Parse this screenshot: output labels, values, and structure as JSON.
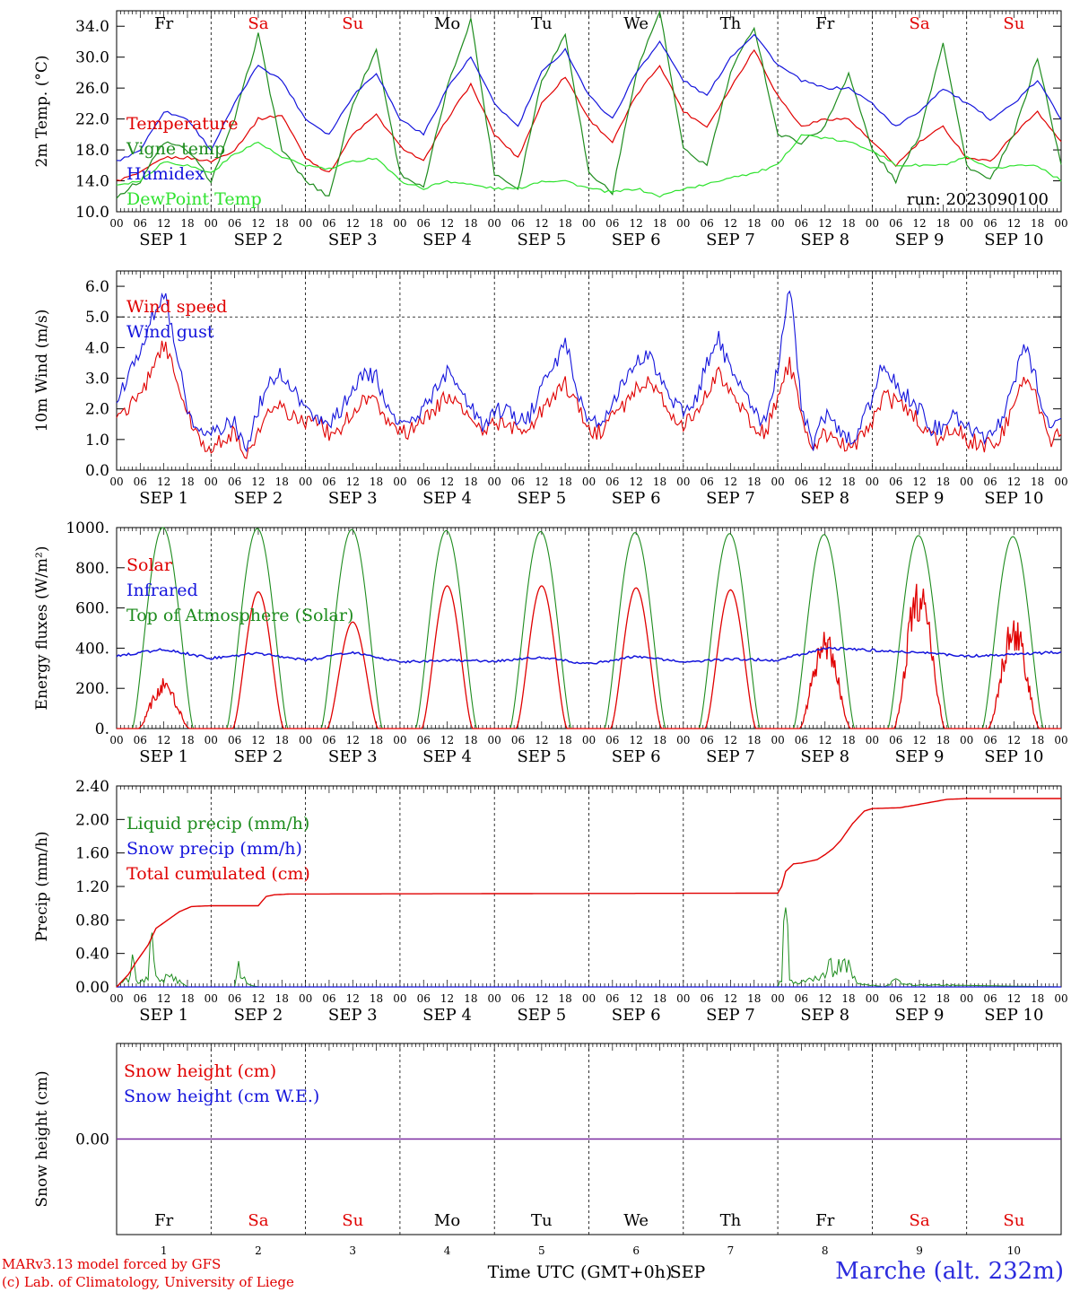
{
  "colors": {
    "red": "#e00000",
    "green": "#1e8c1e",
    "blue": "#1414dc",
    "lightgreen": "#2ee22e",
    "purple": "#7a2aa0",
    "station": "#2b2bdd"
  },
  "days": [
    "1",
    "2",
    "3",
    "4",
    "5",
    "6",
    "7",
    "8",
    "9",
    "10"
  ],
  "day_labels": [
    "SEP  1",
    "SEP  2",
    "SEP  3",
    "SEP  4",
    "SEP  5",
    "SEP  6",
    "SEP  7",
    "SEP  8",
    "SEP  9",
    "SEP 10"
  ],
  "weekdays": [
    "Fr",
    "Sa",
    "Su",
    "Mo",
    "Tu",
    "We",
    "Th",
    "Fr",
    "Sa",
    "Su"
  ],
  "weekday_colors": [
    "black",
    "red",
    "red",
    "black",
    "black",
    "black",
    "black",
    "black",
    "red",
    "red"
  ],
  "hour_ticks": [
    "00",
    "06",
    "12",
    "18"
  ],
  "hour_end": "00",
  "x_axis_label": "Time UTC (GMT+0h)",
  "x_axis_month": "SEP",
  "credit_line1": "MARv3.13 model forced by GFS",
  "credit_line2": "(c) Lab. of Climatology, University of Liege",
  "station": "Marche (alt. 232m)",
  "chart_data": [
    {
      "type": "line",
      "ylabel": "2m Temp. (°C)",
      "ylim": [
        10,
        36
      ],
      "yticks": [
        "10.0",
        "14.0",
        "18.0",
        "22.0",
        "26.0",
        "30.0",
        "34.0"
      ],
      "run_label": "run: 2023090100",
      "x_hours": [
        0,
        6,
        12,
        18,
        24,
        30,
        36,
        42,
        48,
        54,
        60,
        66,
        72,
        78,
        84,
        90,
        96,
        102,
        108,
        114,
        120,
        126,
        132,
        138,
        144,
        150,
        156,
        162,
        168,
        174,
        180,
        186,
        192,
        198,
        204,
        210,
        216,
        222,
        228,
        234,
        240
      ],
      "series": [
        {
          "name": "Temperature",
          "color": "red",
          "values": [
            14,
            15,
            17,
            17,
            16.5,
            18,
            22,
            22.5,
            17,
            15,
            20,
            22.5,
            18.5,
            16.5,
            22,
            26.5,
            20,
            17,
            24,
            27.5,
            22,
            19,
            25,
            29,
            23,
            21,
            26,
            31,
            25,
            21,
            22,
            22,
            19,
            16,
            19,
            21,
            17,
            16.5,
            20,
            23,
            19
          ]
        },
        {
          "name": "Vigne temp",
          "color": "green",
          "values": [
            12,
            14,
            19,
            18,
            14,
            22,
            33,
            18,
            14,
            12,
            24,
            31,
            15,
            13,
            26,
            35,
            15,
            13,
            27,
            33,
            15,
            12.5,
            28,
            36,
            18,
            16,
            28,
            34,
            20,
            19,
            21,
            28,
            18,
            14,
            20,
            32,
            16,
            14,
            20,
            30,
            16
          ]
        },
        {
          "name": "Humidex",
          "color": "blue",
          "values": [
            16.5,
            18,
            23,
            22,
            18,
            24,
            29,
            27,
            22,
            20,
            25,
            28,
            22,
            20,
            26,
            30,
            24,
            21,
            28,
            31,
            25,
            22,
            28,
            32,
            27,
            25,
            30,
            33,
            29,
            27,
            26,
            26,
            24,
            21,
            23,
            26,
            24,
            22,
            24,
            27,
            22
          ]
        },
        {
          "name": "DewPoint Temp",
          "color": "lightgreen",
          "values": [
            13.5,
            14,
            16.5,
            16,
            15,
            17.5,
            19,
            17,
            16,
            15.5,
            16.5,
            17,
            14,
            13,
            14,
            13.5,
            13,
            13,
            14,
            14,
            13,
            12.5,
            13,
            12,
            13,
            13.5,
            14.5,
            15,
            16,
            20,
            19.5,
            19,
            18,
            16,
            16,
            16,
            17,
            15.5,
            16,
            16,
            14
          ]
        }
      ]
    },
    {
      "type": "line",
      "ylabel": "10m Wind (m/s)",
      "ylim": [
        0,
        6.5
      ],
      "yticks": [
        "0.0",
        "1.0",
        "2.0",
        "3.0",
        "4.0",
        "5.0",
        "6.0"
      ],
      "dashed_line": 5.0,
      "x_hours": [
        0,
        3,
        6,
        9,
        12,
        15,
        18,
        21,
        24,
        27,
        30,
        33,
        36,
        39,
        42,
        45,
        48,
        51,
        54,
        57,
        60,
        63,
        66,
        69,
        72,
        75,
        78,
        81,
        84,
        87,
        90,
        93,
        96,
        99,
        102,
        105,
        108,
        111,
        114,
        117,
        120,
        123,
        126,
        129,
        132,
        135,
        138,
        141,
        144,
        147,
        150,
        153,
        156,
        159,
        162,
        165,
        168,
        171,
        174,
        177,
        180,
        183,
        186,
        189,
        192,
        195,
        198,
        201,
        204,
        207,
        210,
        213,
        216,
        219,
        222,
        225,
        228,
        231,
        234,
        237,
        240
      ],
      "series": [
        {
          "name": "Wind speed",
          "color": "red",
          "values": [
            1.7,
            2.0,
            2.5,
            3.2,
            4.1,
            3.2,
            1.8,
            0.9,
            0.8,
            1.0,
            1.2,
            0.4,
            1.4,
            1.9,
            2.0,
            1.7,
            1.6,
            1.5,
            1.2,
            1.4,
            1.9,
            2.4,
            2.3,
            1.6,
            1.2,
            1.3,
            1.6,
            2.0,
            2.4,
            2.2,
            1.6,
            1.3,
            1.5,
            1.5,
            1.3,
            1.4,
            1.9,
            2.5,
            2.8,
            2.1,
            1.2,
            1.3,
            1.8,
            2.1,
            2.6,
            2.9,
            2.4,
            1.9,
            1.5,
            1.7,
            2.5,
            3.1,
            2.6,
            2.0,
            1.3,
            1.2,
            2.4,
            3.5,
            1.8,
            0.6,
            1.2,
            1.0,
            0.8,
            1.0,
            1.6,
            2.4,
            2.2,
            1.9,
            1.6,
            1.0,
            1.1,
            1.5,
            1.0,
            0.9,
            0.8,
            1.2,
            2.2,
            3.1,
            2.2,
            1.0,
            1.2
          ]
        },
        {
          "name": "Wind gust",
          "color": "blue",
          "values": [
            2.2,
            3.0,
            4.0,
            5.0,
            5.8,
            4.0,
            2.1,
            1.2,
            1.1,
            1.4,
            1.6,
            0.5,
            2.0,
            3.0,
            3.1,
            2.7,
            2.0,
            1.8,
            1.4,
            2.0,
            2.5,
            3.2,
            3.0,
            2.0,
            1.5,
            1.6,
            2.0,
            2.6,
            3.2,
            2.8,
            2.0,
            1.5,
            1.9,
            2.0,
            1.5,
            1.8,
            2.8,
            3.3,
            4.2,
            2.6,
            1.5,
            1.6,
            2.3,
            2.8,
            3.5,
            3.7,
            3.1,
            2.3,
            1.9,
            2.2,
            3.5,
            4.3,
            3.2,
            2.8,
            1.8,
            1.6,
            3.4,
            6.1,
            2.1,
            0.8,
            1.8,
            1.3,
            1.0,
            1.3,
            2.4,
            3.6,
            2.8,
            2.4,
            2.0,
            1.4,
            1.4,
            1.9,
            1.3,
            1.2,
            1.1,
            1.7,
            2.9,
            4.1,
            2.8,
            1.3,
            1.5
          ]
        }
      ]
    },
    {
      "type": "line",
      "ylabel": "Energy fluxes (W/m²)",
      "ylim": [
        0,
        1000
      ],
      "yticks": [
        "0.",
        "200.",
        "400.",
        "600.",
        "800.",
        "1000."
      ],
      "series": [
        {
          "name": "Solar",
          "color": "red",
          "daily_peaks": [
            210,
            680,
            530,
            710,
            710,
            700,
            690,
            410,
            660,
            480
          ]
        },
        {
          "name": "Infrared",
          "color": "blue",
          "x_hours": [
            0,
            12,
            24,
            36,
            48,
            60,
            72,
            84,
            96,
            108,
            120,
            132,
            144,
            156,
            168,
            180,
            192,
            204,
            216,
            228,
            240
          ],
          "values": [
            360,
            395,
            350,
            375,
            340,
            380,
            330,
            340,
            335,
            355,
            320,
            360,
            330,
            345,
            340,
            400,
            390,
            380,
            360,
            370,
            380
          ]
        },
        {
          "name": "Top of Atmosphere (Solar)",
          "color": "green",
          "daily_peaks": [
            1000,
            995,
            990,
            985,
            980,
            975,
            970,
            965,
            960,
            955
          ]
        }
      ]
    },
    {
      "type": "line",
      "ylabel": "Precip (mm/h)",
      "ylim": [
        0,
        2.4
      ],
      "yticks": [
        "0.00",
        "0.40",
        "0.80",
        "1.20",
        "1.60",
        "2.00",
        "2.40"
      ],
      "series": [
        {
          "name": "Liquid precip (mm/h)",
          "color": "green",
          "x_hours": [
            0,
            3,
            4,
            5,
            6,
            8,
            9,
            10,
            12,
            15,
            18,
            30,
            31,
            32,
            34,
            36,
            168,
            169,
            170,
            171,
            172,
            174,
            176,
            180,
            181,
            182,
            183,
            184,
            186,
            188,
            195,
            197,
            198,
            200,
            240
          ],
          "values": [
            0,
            0.1,
            0.45,
            0.1,
            0.05,
            0.1,
            0.7,
            0.1,
            0.1,
            0.1,
            0,
            0,
            0.25,
            0.1,
            0.02,
            0,
            0,
            0.1,
            0.95,
            0.1,
            0.05,
            0.05,
            0.1,
            0.15,
            0.4,
            0.2,
            0.3,
            0.2,
            0.25,
            0.05,
            0,
            0.05,
            0.07,
            0.03,
            0
          ]
        },
        {
          "name": "Snow precip (mm/h)",
          "color": "blue",
          "x_hours": [
            0,
            240
          ],
          "values": [
            0,
            0
          ]
        },
        {
          "name": "Total cumulated (cm)",
          "color": "red",
          "x_hours": [
            0,
            3,
            5,
            8,
            10,
            13,
            16,
            19,
            24,
            36,
            38,
            40,
            44,
            48,
            168,
            169,
            170,
            172,
            174,
            178,
            180,
            182,
            184,
            187,
            190,
            192,
            199,
            204,
            211,
            216,
            240
          ],
          "values": [
            0,
            0.15,
            0.3,
            0.5,
            0.7,
            0.8,
            0.9,
            0.96,
            0.97,
            0.97,
            1.08,
            1.1,
            1.11,
            1.11,
            1.12,
            1.2,
            1.38,
            1.47,
            1.48,
            1.52,
            1.58,
            1.65,
            1.75,
            1.95,
            2.1,
            2.13,
            2.14,
            2.18,
            2.24,
            2.25,
            2.25
          ]
        }
      ]
    },
    {
      "type": "line",
      "ylabel": "Snow height (cm)",
      "ylim": [
        -1,
        1
      ],
      "yticks": [
        "0.00"
      ],
      "series": [
        {
          "name": "Snow height (cm)",
          "color": "red",
          "x_hours": [
            0,
            240
          ],
          "values": [
            0,
            0
          ]
        },
        {
          "name": "Snow height (cm W.E.)",
          "color": "blue",
          "x_hours": [
            0,
            240
          ],
          "values": [
            0,
            0
          ]
        }
      ]
    }
  ]
}
